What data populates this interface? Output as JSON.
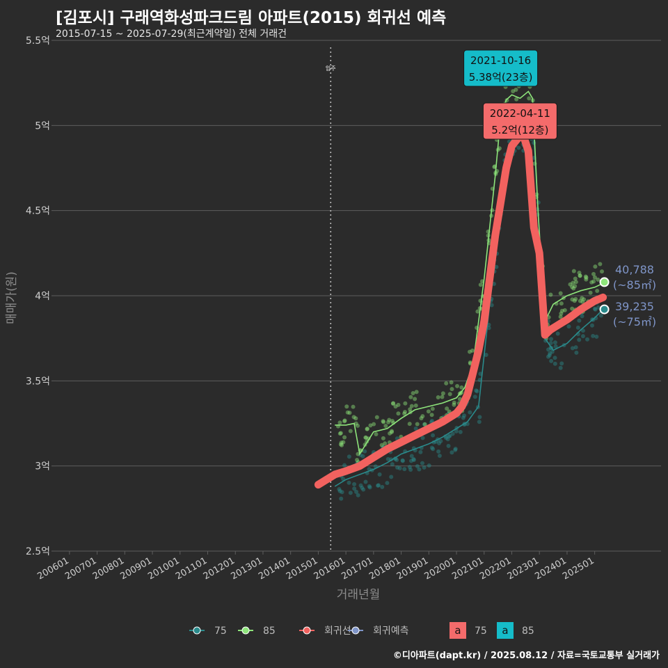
{
  "title": "[김포시] 구래역화성파크드림 아파트(2015) 회귀선 예측",
  "subtitle": "2015-07-15 ~ 2025-07-29(최근계약일) 전체 거래건",
  "credit": "©디아파트(dapt.kr) / 2025.08.12 / 자료=국토교통부 실거래가",
  "colors": {
    "background": "#2b2b2b",
    "grid": "#5e5e5e",
    "teal": "#2a8b8c",
    "green": "#8ee57b",
    "red": "#f2625f",
    "blue": "#7f95c8",
    "cyan": "#15bcc9",
    "salmon": "#f46b6b"
  },
  "chart_data": {
    "type": "scatter",
    "title": "[김포시] 구래역화성파크드림 아파트(2015) 회귀선 예측",
    "xlabel": "거래년월",
    "ylabel": "매매가(원)",
    "ylim": [
      2.5,
      5.5
    ],
    "xlim": [
      2005.5,
      2027.4
    ],
    "y_ticks": [
      2.5,
      3,
      3.5,
      4,
      4.5,
      5,
      5.5
    ],
    "y_tick_labels": [
      "2.5억",
      "3억",
      "3.5억",
      "4억",
      "4.5억",
      "5억",
      "5.5억"
    ],
    "x_ticks": [
      2006,
      2007,
      2008,
      2009,
      2010,
      2011,
      2012,
      2013,
      2014,
      2015,
      2016,
      2017,
      2018,
      2019,
      2020,
      2021,
      2022,
      2023,
      2024,
      2025
    ],
    "x_tick_labels": [
      "200601",
      "200701",
      "200801",
      "200901",
      "201001",
      "201101",
      "201201",
      "201301",
      "201401",
      "201501",
      "201601",
      "201701",
      "201801",
      "201901",
      "202001",
      "202101",
      "202201",
      "202301",
      "202401",
      "202501"
    ],
    "vline": {
      "x": 2015.45,
      "label": "입주"
    },
    "series": [
      {
        "name": "75",
        "type": "line",
        "x": [
          2015.6,
          2016.0,
          2016.5,
          2017.0,
          2017.5,
          2018.0,
          2018.5,
          2019.0,
          2019.5,
          2020.0,
          2020.4,
          2020.8,
          2021.0,
          2021.3,
          2021.6,
          2021.9,
          2022.1,
          2022.4,
          2022.6,
          2022.8,
          2022.95,
          2023.2,
          2023.5,
          2024.0,
          2024.5,
          2025.0,
          2025.3
        ],
        "y": [
          2.88,
          2.92,
          2.95,
          2.98,
          3.02,
          3.07,
          3.1,
          3.13,
          3.17,
          3.22,
          3.26,
          3.35,
          3.65,
          4.1,
          4.5,
          4.85,
          4.98,
          4.95,
          4.98,
          4.94,
          4.5,
          3.75,
          3.68,
          3.72,
          3.8,
          3.87,
          3.92
        ]
      },
      {
        "name": "85",
        "type": "line",
        "x": [
          2015.6,
          2016.0,
          2016.3,
          2016.5,
          2017.0,
          2017.5,
          2018.0,
          2018.5,
          2019.0,
          2019.5,
          2020.0,
          2020.3,
          2020.6,
          2020.8,
          2021.0,
          2021.2,
          2021.4,
          2021.6,
          2021.8,
          2022.0,
          2022.3,
          2022.6,
          2022.75,
          2022.95,
          2023.2,
          2023.5,
          2024.0,
          2024.5,
          2025.0,
          2025.4
        ],
        "y": [
          3.24,
          3.24,
          3.25,
          3.07,
          3.2,
          3.22,
          3.28,
          3.33,
          3.35,
          3.37,
          3.4,
          3.46,
          3.6,
          3.85,
          4.1,
          4.4,
          4.7,
          5.05,
          5.15,
          5.18,
          5.16,
          5.2,
          5.16,
          4.5,
          3.85,
          3.95,
          4.0,
          4.03,
          4.05,
          4.08
        ]
      },
      {
        "name": "회귀선",
        "type": "regression",
        "x": [
          2015.0,
          2015.3,
          2015.6,
          2016.0,
          2016.5,
          2017.0,
          2017.5,
          2018.0,
          2018.5,
          2019.0,
          2019.5,
          2020.0,
          2020.2,
          2020.4,
          2020.6,
          2020.8,
          2021.0,
          2021.2,
          2021.4,
          2021.6,
          2021.8,
          2022.0,
          2022.2,
          2022.4,
          2022.6,
          2022.8,
          2023.0,
          2023.2,
          2023.4,
          2023.6,
          2023.8,
          2024.0,
          2024.5,
          2025.0,
          2025.3
        ],
        "y": [
          2.89,
          2.92,
          2.95,
          2.97,
          3.0,
          3.05,
          3.1,
          3.14,
          3.18,
          3.22,
          3.26,
          3.31,
          3.35,
          3.42,
          3.55,
          3.68,
          3.85,
          4.1,
          4.35,
          4.55,
          4.75,
          4.88,
          4.92,
          4.95,
          4.85,
          4.4,
          4.25,
          3.77,
          3.8,
          3.82,
          3.84,
          3.86,
          3.92,
          3.97,
          3.99
        ]
      }
    ],
    "endpoints": [
      {
        "series": "85",
        "x": 2025.35,
        "y": 4.08
      },
      {
        "series": "75",
        "x": 2025.35,
        "y": 3.92
      }
    ],
    "scatter_counts": {
      "75": 260,
      "85": 230
    },
    "annotations": [
      {
        "series": "85",
        "x": 2021.6,
        "y": 5.38,
        "lines": [
          "2021-10-16",
          "5.38억(23층)"
        ]
      },
      {
        "series": "75",
        "x": 2022.3,
        "y": 5.2,
        "lines": [
          "2022-04-11",
          "5.2억(12층)"
        ]
      }
    ],
    "end_labels": [
      {
        "series": "85",
        "lines": [
          "40,788",
          "(~85㎡)"
        ]
      },
      {
        "series": "75",
        "lines": [
          "39,235",
          "(~75㎡)"
        ]
      }
    ],
    "legend": {
      "position": "bottom",
      "items": [
        {
          "label": "75",
          "color": "#2a8b8c"
        },
        {
          "label": "85",
          "color": "#8ee57b"
        },
        {
          "label": "회귀선",
          "color": "#f2625f"
        },
        {
          "label": "회귀예측",
          "color": "#7f95c8"
        }
      ],
      "fill_items": [
        {
          "key": "a",
          "label": "75",
          "color": "#f46b6b"
        },
        {
          "key": "a",
          "label": "85",
          "color": "#15bcc9"
        }
      ]
    }
  }
}
